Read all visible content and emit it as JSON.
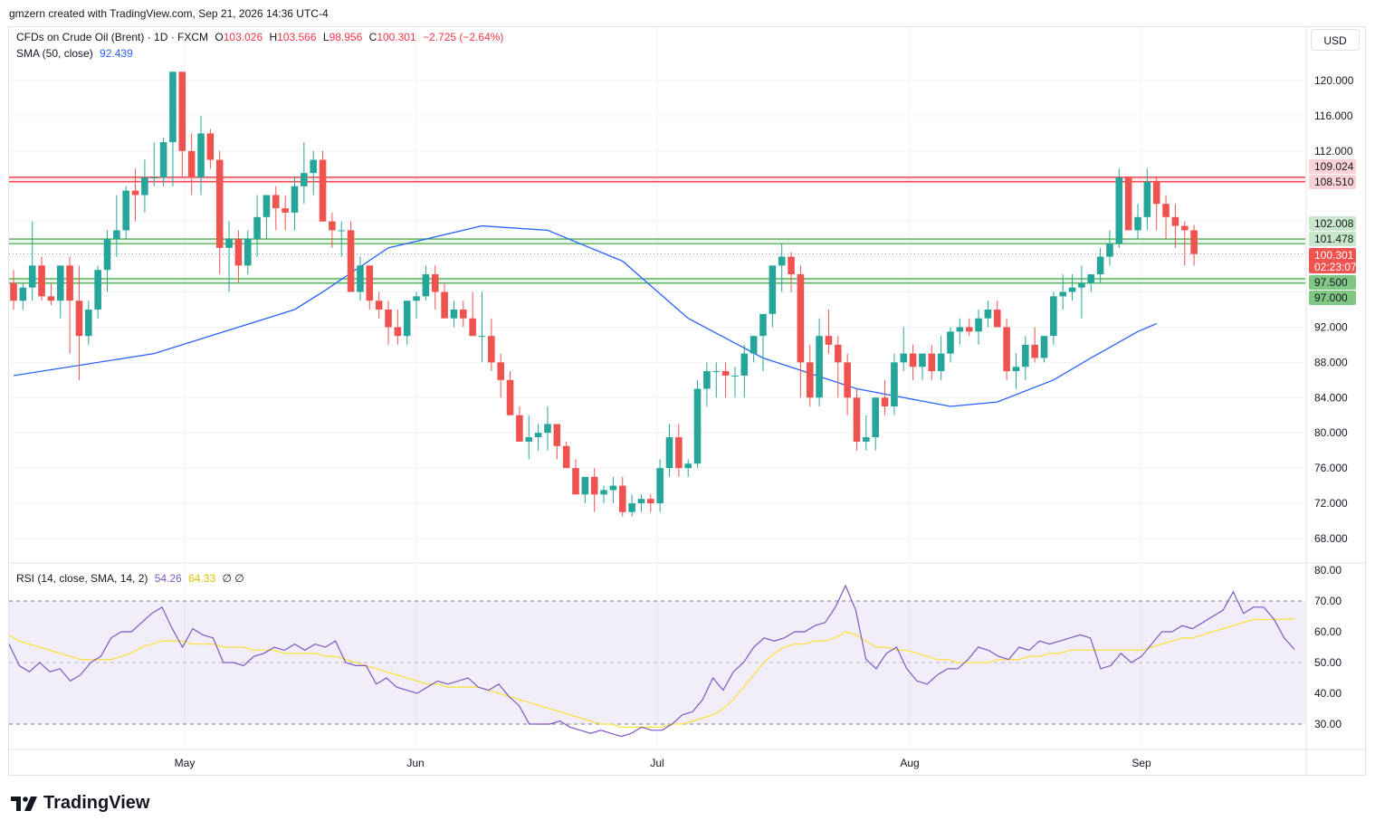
{
  "header": {
    "text": "gmzern created with TradingView.com, Sep 21, 2026 14:36 UTC-4"
  },
  "legend": {
    "symbol": "CFDs on Crude Oil (Brent) · 1D · FXCM",
    "o_label": "O",
    "o_value": "103.026",
    "h_label": "H",
    "h_value": "103.566",
    "l_label": "L",
    "l_value": "98.956",
    "c_label": "C",
    "c_value": "100.301",
    "change": "−2.725 (−2.64%)",
    "sma_label": "SMA (50, close)",
    "sma_value": "92.439",
    "rsi_label": "RSI (14, close, SMA, 14, 2)",
    "rsi_value": "54.26",
    "rsi_ma_value": "64.33",
    "rsi_extra": "∅  ∅"
  },
  "currency": "USD",
  "footer": {
    "brand": "TradingView",
    "logo": "tradingview-logo"
  },
  "colors": {
    "up": "#26a69a",
    "down": "#ef5350",
    "sma": "#2962ff",
    "rsi": "#7e57c2",
    "rsi_ma": "#fbe044",
    "support": "#4caf50",
    "resistance": "#f23645"
  },
  "chart_data": {
    "type": "candlestick",
    "x_tick_labels": [
      "May",
      "Jun",
      "Jul",
      "Aug",
      "Sep"
    ],
    "price_axis": {
      "ticks": [
        68,
        72,
        76,
        80,
        84,
        88,
        92,
        96,
        100,
        104,
        108,
        112,
        116,
        120
      ],
      "tick_labels": [
        "68.000",
        "72.000",
        "76.000",
        "80.000",
        "84.000",
        "88.000",
        "92.000",
        "",
        "",
        "",
        "",
        "112.000",
        "116.000",
        "120.000"
      ],
      "ylim": [
        65,
        124
      ]
    },
    "horizontal_levels": [
      {
        "value": 109.024,
        "label": "109.024",
        "color": "#f23645"
      },
      {
        "value": 108.51,
        "label": "108.510",
        "color": "#f23645"
      },
      {
        "value": 102.008,
        "label": "102.008",
        "color": "#4caf50"
      },
      {
        "value": 101.478,
        "label": "101.478",
        "color": "#4caf50"
      },
      {
        "value": 97.5,
        "label": "97.500",
        "color": "#4caf50"
      },
      {
        "value": 97.0,
        "label": "97.000",
        "color": "#4caf50"
      }
    ],
    "last_price": {
      "value": 100.301,
      "label": "100.301",
      "countdown": "02:23:07"
    },
    "candles_ohlc": [
      [
        97,
        98.5,
        94,
        95
      ],
      [
        95,
        97,
        94,
        96.5
      ],
      [
        96.5,
        104,
        95,
        99
      ],
      [
        99,
        100,
        95,
        95.5
      ],
      [
        95.5,
        97,
        94.5,
        95
      ],
      [
        95,
        98,
        93,
        99
      ],
      [
        99,
        100,
        89,
        95
      ],
      [
        95,
        99,
        86,
        91
      ],
      [
        91,
        95,
        90,
        94
      ],
      [
        94,
        99,
        93,
        98.5
      ],
      [
        98.5,
        103,
        96,
        102
      ],
      [
        102,
        107,
        100,
        103
      ],
      [
        103,
        108,
        102,
        107.5
      ],
      [
        107.5,
        110,
        104,
        107
      ],
      [
        107,
        111,
        105,
        109
      ],
      [
        109,
        113,
        108,
        109
      ],
      [
        109,
        113.5,
        108,
        113
      ],
      [
        113,
        121,
        108,
        121
      ],
      [
        121,
        115,
        109,
        112
      ],
      [
        112,
        114,
        107,
        109
      ],
      [
        109,
        116,
        107,
        114
      ],
      [
        114,
        114.5,
        110,
        111
      ],
      [
        111,
        112,
        98,
        101
      ],
      [
        101,
        104,
        96,
        102
      ],
      [
        102,
        103,
        97,
        99
      ],
      [
        99,
        103,
        98,
        102
      ],
      [
        102,
        107,
        100,
        104.5
      ],
      [
        104.5,
        107,
        102,
        107
      ],
      [
        107,
        108,
        103,
        105.5
      ],
      [
        105.5,
        107,
        103,
        105
      ],
      [
        105,
        109,
        103,
        108
      ],
      [
        108,
        113,
        106,
        109.5
      ],
      [
        109.5,
        112,
        107,
        111
      ],
      [
        111,
        112,
        104,
        104
      ],
      [
        104,
        105,
        101,
        103
      ],
      [
        103,
        104,
        100,
        103
      ],
      [
        103,
        104,
        96,
        96
      ],
      [
        96,
        100,
        95,
        99
      ],
      [
        99,
        99,
        94,
        95
      ],
      [
        95,
        96,
        93,
        94
      ],
      [
        94,
        95,
        90,
        92
      ],
      [
        92,
        94,
        90,
        91
      ],
      [
        91,
        95,
        90,
        95
      ],
      [
        95,
        96,
        93,
        95.5
      ],
      [
        95.5,
        99,
        95,
        98
      ],
      [
        98,
        99,
        94,
        96
      ],
      [
        96,
        97,
        93,
        93
      ],
      [
        93,
        95,
        92,
        94
      ],
      [
        94,
        95,
        92,
        93
      ],
      [
        93,
        96,
        91,
        91
      ],
      [
        91,
        96,
        88,
        91
      ],
      [
        91,
        93,
        87,
        88
      ],
      [
        88,
        89,
        84,
        86
      ],
      [
        86,
        87,
        82,
        82
      ],
      [
        82,
        83,
        79,
        79
      ],
      [
        79,
        82,
        77,
        79.5
      ],
      [
        79.5,
        81,
        78,
        80
      ],
      [
        80,
        83,
        78,
        81
      ],
      [
        81,
        81,
        77,
        78.5
      ],
      [
        78.5,
        79,
        76,
        76
      ],
      [
        76,
        77,
        73,
        73
      ],
      [
        73,
        74,
        72,
        75
      ],
      [
        75,
        76,
        71,
        73
      ],
      [
        73,
        74,
        72,
        73.5
      ],
      [
        73.5,
        75,
        72,
        74
      ],
      [
        74,
        75,
        70.5,
        71
      ],
      [
        71,
        73,
        70.5,
        72
      ],
      [
        72,
        73,
        71,
        72.5
      ],
      [
        72.5,
        73,
        71,
        72
      ],
      [
        72,
        77,
        71,
        76
      ],
      [
        76,
        81,
        75,
        79.5
      ],
      [
        79.5,
        81,
        75,
        76
      ],
      [
        76,
        77,
        75,
        76.5
      ],
      [
        76.5,
        86,
        76,
        85
      ],
      [
        85,
        88,
        83,
        87
      ],
      [
        87,
        88,
        84,
        87
      ],
      [
        87,
        88,
        84,
        86.5
      ],
      [
        86.5,
        87.5,
        84,
        86.5
      ],
      [
        86.5,
        90,
        84,
        89
      ],
      [
        89,
        91,
        88,
        91
      ],
      [
        91,
        93,
        87,
        93.5
      ],
      [
        93.5,
        98,
        92,
        99
      ],
      [
        99,
        101.5,
        96,
        100
      ],
      [
        100,
        100.5,
        96,
        98
      ],
      [
        98,
        99,
        84,
        88
      ],
      [
        88,
        90,
        83,
        84
      ],
      [
        84,
        93,
        83,
        91
      ],
      [
        91,
        94,
        89,
        90
      ],
      [
        90,
        91,
        84,
        88
      ],
      [
        88,
        89,
        82,
        84
      ],
      [
        84,
        85,
        78,
        79
      ],
      [
        79,
        82,
        78,
        79.5
      ],
      [
        79.5,
        84,
        78,
        84
      ],
      [
        84,
        86,
        82,
        83
      ],
      [
        83,
        89,
        82,
        88
      ],
      [
        88,
        92,
        87,
        89
      ],
      [
        89,
        90,
        86,
        87.5
      ],
      [
        87.5,
        89,
        86,
        89
      ],
      [
        89,
        90,
        86,
        87
      ],
      [
        87,
        91,
        86,
        89
      ],
      [
        89,
        92,
        88,
        91.5
      ],
      [
        91.5,
        93,
        90,
        92
      ],
      [
        92,
        93,
        91,
        91.5
      ],
      [
        91.5,
        94,
        90,
        93
      ],
      [
        93,
        95,
        92,
        94
      ],
      [
        94,
        95,
        92,
        92
      ],
      [
        92,
        93,
        86,
        87
      ],
      [
        87,
        89,
        85,
        87.5
      ],
      [
        87.5,
        91,
        86,
        90
      ],
      [
        90,
        92,
        88,
        88.5
      ],
      [
        88.5,
        91,
        88,
        91
      ],
      [
        91,
        96,
        90,
        95.5
      ],
      [
        95.5,
        98,
        94,
        96
      ],
      [
        96,
        98,
        95,
        96.5
      ],
      [
        96.5,
        99,
        93,
        97
      ],
      [
        97,
        98,
        96,
        98
      ],
      [
        98,
        101,
        97,
        100
      ],
      [
        100,
        103,
        99,
        101.5
      ],
      [
        101.5,
        110,
        101,
        109
      ],
      [
        109,
        109,
        104,
        103
      ],
      [
        103,
        106,
        102,
        104.5
      ],
      [
        104.5,
        110,
        103,
        108.5
      ],
      [
        108.5,
        109,
        103,
        106
      ],
      [
        106,
        107,
        102,
        104.5
      ],
      [
        104.5,
        106,
        101,
        103.5
      ],
      [
        103.5,
        104,
        99,
        103
      ],
      [
        103,
        103.6,
        98.96,
        100.3
      ]
    ],
    "sma50": [
      [
        0,
        86.5
      ],
      [
        15,
        89
      ],
      [
        30,
        94
      ],
      [
        33,
        96
      ],
      [
        40,
        101
      ],
      [
        50,
        103.5
      ],
      [
        57,
        103
      ],
      [
        65,
        99.5
      ],
      [
        72,
        93
      ],
      [
        80,
        88.5
      ],
      [
        90,
        85
      ],
      [
        100,
        83
      ],
      [
        105,
        83.5
      ],
      [
        111,
        86
      ],
      [
        115,
        88.5
      ],
      [
        120,
        91.5
      ],
      [
        122,
        92.4
      ]
    ],
    "rsi_axis": {
      "ticks": [
        30,
        40,
        50,
        60,
        70,
        80
      ],
      "ylim": [
        21,
        83
      ],
      "tick_labels": [
        "30.00",
        "40.00",
        "50.00",
        "60.00",
        "70.00",
        "80.00"
      ],
      "levels": [
        30,
        50,
        70
      ]
    },
    "rsi": [
      56,
      49,
      47,
      50,
      47,
      48,
      44,
      46,
      50,
      52,
      58,
      60,
      60,
      63,
      66,
      68,
      61,
      55,
      61,
      59,
      58,
      50,
      50,
      49,
      52,
      53,
      55,
      54,
      56,
      54,
      56,
      55,
      57,
      50,
      49,
      49,
      43,
      45,
      42,
      41,
      40,
      42,
      44,
      43,
      44,
      45,
      42,
      41,
      43,
      39,
      36,
      30,
      30,
      30,
      31,
      29,
      28,
      27,
      28,
      27,
      26,
      27,
      29,
      28,
      28,
      30,
      33,
      34,
      38,
      45,
      41,
      47,
      50,
      55,
      58,
      57,
      58,
      60,
      60,
      62,
      63,
      68,
      75,
      67,
      51,
      48,
      53,
      55,
      48,
      44,
      43,
      46,
      48,
      48,
      51,
      55,
      54,
      52,
      51,
      55,
      54,
      57,
      56,
      57,
      58,
      59,
      58,
      48,
      49,
      53,
      50,
      52,
      56,
      60,
      60,
      62,
      61,
      63,
      65,
      67,
      73,
      66,
      68,
      68,
      64,
      58,
      54.26
    ],
    "rsi_ma": [
      59,
      57,
      56,
      55,
      54,
      53,
      52,
      51,
      51,
      51,
      51,
      52,
      53,
      55,
      56,
      57,
      57,
      57,
      56,
      56,
      56,
      55,
      55,
      55,
      54,
      54,
      54,
      53,
      53,
      53,
      53,
      52,
      52,
      51,
      50,
      49,
      48,
      47,
      46,
      45,
      44,
      43,
      43,
      42,
      42,
      42,
      42,
      41,
      40,
      39,
      38,
      37,
      36,
      35,
      34,
      33,
      32,
      31,
      30,
      30,
      29,
      29,
      29,
      29,
      29,
      30,
      30,
      31,
      32,
      33,
      35,
      38,
      42,
      46,
      50,
      53,
      55,
      56,
      56,
      57,
      57,
      58,
      60,
      59,
      57,
      55,
      55,
      54,
      54,
      53,
      52,
      51,
      51,
      50,
      50,
      50,
      50,
      51,
      51,
      51,
      52,
      52,
      53,
      53,
      54,
      54,
      54,
      54,
      54,
      54,
      54,
      54,
      55,
      56,
      57,
      58,
      58,
      59,
      60,
      61,
      62,
      63,
      64,
      64,
      64,
      64,
      64.33
    ]
  }
}
